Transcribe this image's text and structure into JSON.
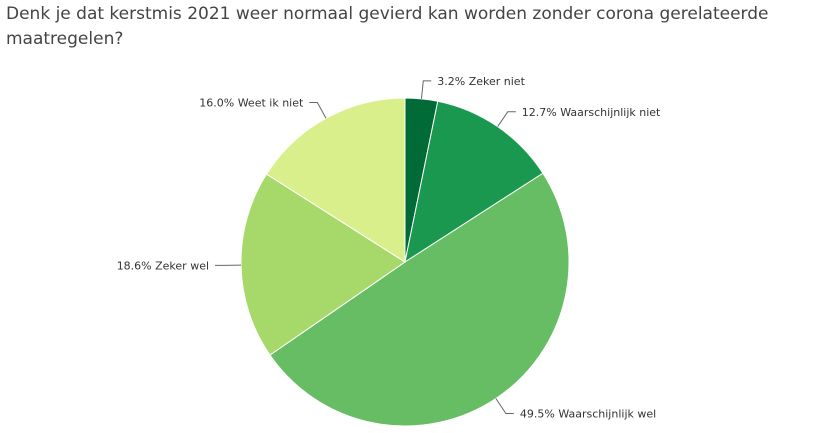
{
  "chart_data": {
    "type": "pie",
    "title": "Denk je dat kerstmis 2021 weer normaal gevierd kan worden zonder corona gerelateerde maatregelen?",
    "slices": [
      {
        "label": "Zeker niet",
        "value": 3.2,
        "label_text": "3.2% Zeker niet",
        "color": "#006b36"
      },
      {
        "label": "Waarschijnlijk niet",
        "value": 12.7,
        "label_text": "12.7% Waarschijnlijk niet",
        "color": "#1a9850"
      },
      {
        "label": "Waarschijnlijk wel",
        "value": 49.5,
        "label_text": "49.5% Waarschijnlijk wel",
        "color": "#66bd63"
      },
      {
        "label": "Zeker wel",
        "value": 18.6,
        "label_text": "18.6% Zeker wel",
        "color": "#a6d96a"
      },
      {
        "label": "Weet ik niet",
        "value": 16.0,
        "label_text": "16.0% Weet ik niet",
        "color": "#d9ef8b"
      }
    ],
    "start": "top",
    "direction": "clockwise"
  }
}
